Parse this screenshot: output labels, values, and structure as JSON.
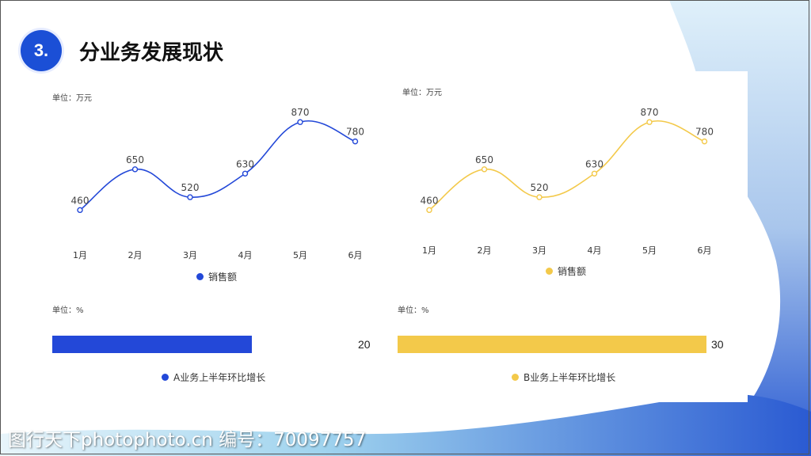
{
  "header": {
    "number": "3.",
    "title": "分业务发展现状"
  },
  "colors": {
    "blue": "#2348d8",
    "yellow": "#f3c94a",
    "accent": "#1b4fd6"
  },
  "left_line": {
    "unit": "单位：万元",
    "legend": "销售额"
  },
  "right_line": {
    "unit": "单位：万元",
    "legend": "销售额"
  },
  "left_bar": {
    "unit": "单位：%",
    "value_label": "20",
    "legend": "A业务上半年环比增长"
  },
  "right_bar": {
    "unit": "单位：%",
    "value_label": "30",
    "legend": "B业务上半年环比增长"
  },
  "watermark": "图行天下photophoto.cn 编号：70097757",
  "chart_data": [
    {
      "type": "line",
      "categories": [
        "1月",
        "2月",
        "3月",
        "4月",
        "5月",
        "6月"
      ],
      "series": [
        {
          "name": "销售额",
          "values": [
            460,
            650,
            520,
            630,
            870,
            780
          ]
        }
      ],
      "ylim": [
        0,
        1000
      ]
    },
    {
      "type": "line",
      "categories": [
        "1月",
        "2月",
        "3月",
        "4月",
        "5月",
        "6月"
      ],
      "series": [
        {
          "name": "销售额",
          "values": [
            460,
            650,
            520,
            630,
            870,
            780
          ]
        }
      ],
      "ylim": [
        0,
        1000
      ]
    },
    {
      "type": "bar",
      "categories": [
        "A业务上半年环比增长"
      ],
      "values": [
        20
      ]
    },
    {
      "type": "bar",
      "categories": [
        "B业务上半年环比增长"
      ],
      "values": [
        30
      ]
    }
  ]
}
